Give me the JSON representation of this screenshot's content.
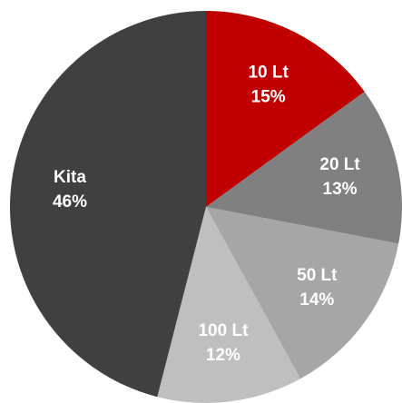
{
  "chart_data": {
    "type": "pie",
    "categories": [
      "10 Lt",
      "20 Lt",
      "50 Lt",
      "100 Lt",
      "Kita"
    ],
    "values": [
      15,
      13,
      14,
      12,
      46
    ],
    "value_labels": [
      "15%",
      "13%",
      "14%",
      "12%",
      "46%"
    ],
    "colors": [
      "#c00000",
      "#808080",
      "#a6a6a6",
      "#bfbfbf",
      "#404040"
    ]
  }
}
